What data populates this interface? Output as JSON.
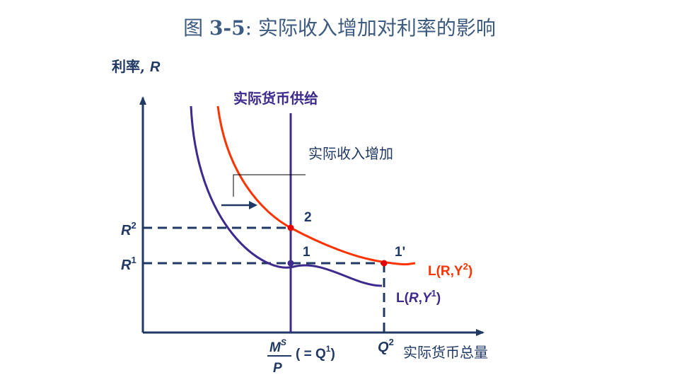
{
  "title": {
    "prefix": "图 ",
    "number": "3-5",
    "text": ": 实际收入增加对利率的影响"
  },
  "axes": {
    "y_label_cn": "利率, ",
    "y_label_var": "R",
    "x_label_cn": "实际货币总量"
  },
  "labels": {
    "money_supply": "实际货币供给",
    "income_increase": "实际收入增加",
    "r2": "R",
    "r2_sup": "2",
    "r1": "R",
    "r1_sup": "1",
    "pt2": "2",
    "pt1": "1",
    "pt1p": "1'",
    "q2": "Q",
    "q2_sup": "2",
    "ms_num": "M",
    "ms_sup": "S",
    "ms_den": "P",
    "ms_eq": "( = Q",
    "ms_eq_sup": "1",
    "ms_eq_close": ")"
  },
  "curves": {
    "new": {
      "l": "L(R,Y",
      "sup": "2",
      "close": ")",
      "color": "#ff3300"
    },
    "old": {
      "l": "L(",
      "r": "R",
      "comma": ",",
      "y": "Y",
      "sup": "1",
      "close": ")",
      "color": "#3d2a8c"
    }
  },
  "colors": {
    "axis": "#1f3864",
    "dash": "#1f3864",
    "supply": "#3d2a8c",
    "point": "#e60000",
    "point_blue": "#3d2a8c"
  }
}
